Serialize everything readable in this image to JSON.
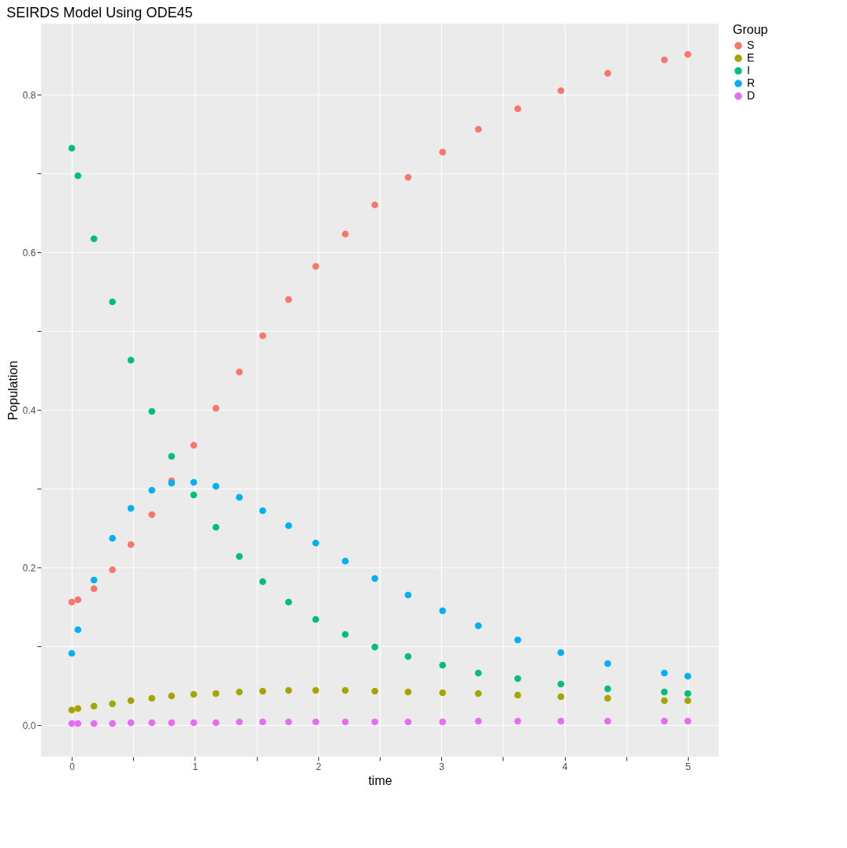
{
  "chart_data": {
    "type": "scatter",
    "title": "SEIRDS Model Using ODE45",
    "xlabel": "time",
    "ylabel": "Population",
    "legend_title": "Group",
    "legend": "right",
    "grid": true,
    "marker": "circle",
    "x": [
      0,
      0.05,
      0.18,
      0.33,
      0.48,
      0.65,
      0.81,
      0.99,
      1.17,
      1.36,
      1.55,
      1.76,
      1.98,
      2.22,
      2.46,
      2.73,
      3.01,
      3.3,
      3.62,
      3.97,
      4.35,
      4.81,
      5.0
    ],
    "xlim": [
      -0.25,
      5.25
    ],
    "ylim": [
      -0.04,
      0.89
    ],
    "xticks": [
      0,
      {
        "value": 0.5,
        "label": null
      },
      1,
      {
        "value": 1.5,
        "label": null
      },
      2,
      {
        "value": 2.5,
        "label": null
      },
      3,
      {
        "value": 3.5,
        "label": null
      },
      4,
      {
        "value": 4.5,
        "label": null
      },
      5
    ],
    "yticks": [
      {
        "value": 0,
        "label": "0.0"
      },
      {
        "value": 0.1,
        "label": null
      },
      0.2,
      {
        "value": 0.3,
        "label": null
      },
      0.4,
      {
        "value": 0.5,
        "label": null
      },
      0.6,
      {
        "value": 0.7,
        "label": null
      },
      0.8
    ],
    "series": [
      {
        "name": "S",
        "color": "#f8766d",
        "values": [
          0.156,
          0.159,
          0.173,
          0.197,
          0.229,
          0.267,
          0.31,
          0.355,
          0.402,
          0.448,
          0.494,
          0.54,
          0.582,
          0.623,
          0.66,
          0.695,
          0.727,
          0.756,
          0.782,
          0.805,
          0.827,
          0.844,
          0.851
        ]
      },
      {
        "name": "E",
        "color": "#a3a500",
        "values": [
          0.019,
          0.021,
          0.024,
          0.027,
          0.031,
          0.034,
          0.037,
          0.039,
          0.04,
          0.042,
          0.043,
          0.044,
          0.044,
          0.044,
          0.043,
          0.042,
          0.041,
          0.04,
          0.038,
          0.036,
          0.034,
          0.031,
          0.031
        ]
      },
      {
        "name": "I",
        "color": "#00bf7d",
        "values": [
          0.732,
          0.697,
          0.617,
          0.537,
          0.463,
          0.398,
          0.341,
          0.292,
          0.251,
          0.214,
          0.182,
          0.156,
          0.134,
          0.115,
          0.099,
          0.087,
          0.076,
          0.066,
          0.059,
          0.052,
          0.046,
          0.042,
          0.04
        ]
      },
      {
        "name": "R",
        "color": "#00b0f6",
        "values": [
          0.091,
          0.121,
          0.184,
          0.237,
          0.275,
          0.298,
          0.307,
          0.308,
          0.303,
          0.289,
          0.272,
          0.253,
          0.231,
          0.208,
          0.186,
          0.165,
          0.145,
          0.126,
          0.108,
          0.092,
          0.078,
          0.066,
          0.062
        ]
      },
      {
        "name": "D",
        "color": "#e76bf3",
        "values": [
          0.002,
          0.002,
          0.002,
          0.002,
          0.003,
          0.003,
          0.003,
          0.003,
          0.003,
          0.004,
          0.004,
          0.004,
          0.004,
          0.004,
          0.004,
          0.004,
          0.004,
          0.005,
          0.005,
          0.005,
          0.005,
          0.005,
          0.005
        ]
      }
    ]
  }
}
